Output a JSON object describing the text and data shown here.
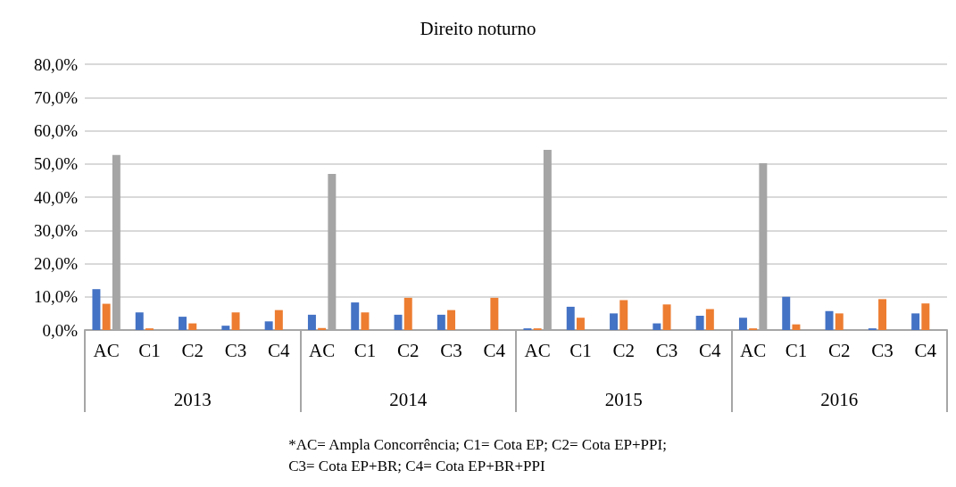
{
  "chart_data": {
    "type": "bar",
    "title": "Direito noturno",
    "categories": [
      "AC",
      "C1",
      "C2",
      "C3",
      "C4",
      "AC",
      "C1",
      "C2",
      "C3",
      "C4",
      "AC",
      "C1",
      "C2",
      "C3",
      "C4",
      "AC",
      "C1",
      "C2",
      "C3",
      "C4"
    ],
    "series": [
      {
        "color": "#4472c4",
        "values": [
          12.3,
          5.3,
          4.0,
          1.3,
          2.6,
          4.6,
          8.3,
          4.6,
          4.6,
          0,
          0.5,
          7.0,
          5.0,
          2.0,
          4.3,
          3.7,
          10.0,
          5.7,
          0.5,
          5.0
        ]
      },
      {
        "color": "#ed7d31",
        "values": [
          7.9,
          0.5,
          2.0,
          5.3,
          6.0,
          0.6,
          5.3,
          9.7,
          6.0,
          9.7,
          0.5,
          3.7,
          9.0,
          7.7,
          6.3,
          0.5,
          1.7,
          5.0,
          9.3,
          8.0
        ]
      },
      {
        "color": "#a5a5a5",
        "values": [
          52.7,
          0,
          0,
          0,
          0,
          47.0,
          0,
          0,
          0,
          0,
          54.2,
          0,
          0,
          0,
          0,
          50.2,
          0,
          0,
          0,
          0
        ]
      }
    ],
    "ylim": [
      0,
      80
    ],
    "yticks": [
      {
        "value": 0,
        "label": "0,0%"
      },
      {
        "value": 10,
        "label": "10,0%"
      },
      {
        "value": 20,
        "label": "20,0%"
      },
      {
        "value": 30,
        "label": "30,0%"
      },
      {
        "value": 40,
        "label": "40,0%"
      },
      {
        "value": 50,
        "label": "50,0%"
      },
      {
        "value": 60,
        "label": "60,0%"
      },
      {
        "value": 70,
        "label": "70,0%"
      },
      {
        "value": 80,
        "label": "80,0%"
      }
    ],
    "grid": "y",
    "annotations": [
      "2013",
      "2014",
      "2015",
      "2016",
      "*AC= Ampla Concorrência; C1= Cota EP; C2= Cota EP+PPI;\nC3= Cota EP+BR; C4= Cota EP+BR+PPI"
    ]
  }
}
